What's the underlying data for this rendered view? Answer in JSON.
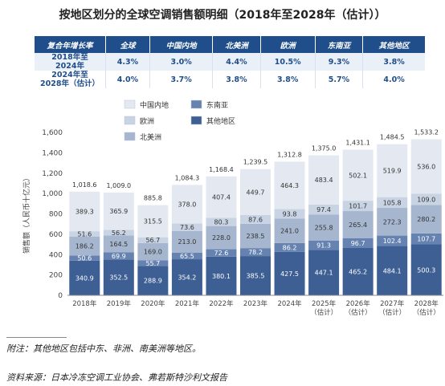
{
  "title": "按地区划分的全球空调销售额明细（2018年至2028年（估计））",
  "table": {
    "headers": [
      "复合年增长率",
      "全球",
      "中国内地",
      "北美洲",
      "欧洲",
      "东南亚",
      "其他地区"
    ],
    "rows": [
      {
        "period_line1": "2018年至",
        "period_line2": "2024年",
        "values": [
          "4.3%",
          "3.0%",
          "4.4%",
          "10.5%",
          "9.3%",
          "3.8%"
        ]
      },
      {
        "period_line1": "2024年至",
        "period_line2": "2028年（估计）",
        "values": [
          "4.0%",
          "3.7%",
          "3.8%",
          "3.8%",
          "5.7%",
          "4.0%"
        ]
      }
    ]
  },
  "note": "附注：其他地区包括中东、非洲、南美洲等地区。",
  "source": "资料来源：日本冷冻空调工业协会、弗若斯特沙利文报告",
  "chart_data": {
    "type": "bar",
    "stacked": true,
    "ylabel": "销售额（人民币十亿元）",
    "ylim": [
      0,
      1600
    ],
    "yticks": [
      0,
      200,
      400,
      600,
      800,
      1000,
      1200,
      1400,
      1600
    ],
    "ytick_labels": [
      "0",
      "200",
      "400",
      "600",
      "800",
      "1,000",
      "1,200",
      "1,400",
      "1,600"
    ],
    "categories": [
      "2018年",
      "2019年",
      "2020年",
      "2021年",
      "2022年",
      "2023年",
      "2024年",
      "2025年\n（估计）",
      "2026年\n（估计）",
      "2027年\n（估计）",
      "2028年\n（估计）"
    ],
    "totals": [
      "1,018.6",
      "1,009.0",
      "885.8",
      "1,084.3",
      "1,168.4",
      "1,239.5",
      "1,312.8",
      "1,375.0",
      "1,431.1",
      "1,484.5",
      "1,533.2"
    ],
    "legend_position": "top-left",
    "series": [
      {
        "name": "其他地区",
        "color": "#3d5f94",
        "values": [
          340.9,
          352.5,
          288.9,
          354.2,
          380.1,
          385.5,
          427.5,
          447.1,
          465.2,
          484.1,
          500.3
        ]
      },
      {
        "name": "东南亚",
        "color": "#6582b0",
        "values": [
          50.6,
          69.9,
          55.7,
          65.5,
          72.6,
          78.2,
          86.2,
          91.3,
          96.7,
          102.4,
          107.7
        ]
      },
      {
        "name": "北美洲",
        "color": "#a6b6cf",
        "values": [
          186.2,
          164.5,
          169.0,
          213.0,
          228.0,
          238.5,
          241.0,
          255.8,
          265.4,
          272.3,
          280.2
        ]
      },
      {
        "name": "欧洲",
        "color": "#c8d3e3",
        "values": [
          51.6,
          56.2,
          56.7,
          73.6,
          80.3,
          87.6,
          93.8,
          97.4,
          101.7,
          105.8,
          109.0
        ]
      },
      {
        "name": "中国内地",
        "color": "#e4e9f1",
        "values": [
          389.3,
          365.9,
          315.5,
          378.0,
          407.4,
          449.7,
          464.3,
          483.4,
          502.1,
          519.9,
          536.0
        ]
      }
    ],
    "legend_order": [
      "中国内地",
      "东南亚",
      "欧洲",
      "其他地区",
      "北美洲"
    ]
  }
}
